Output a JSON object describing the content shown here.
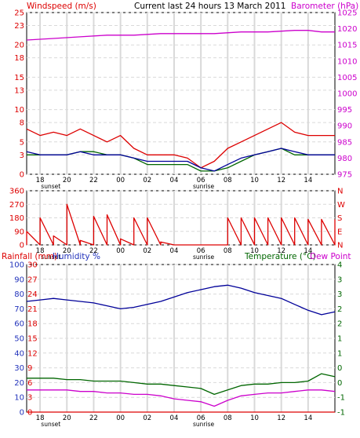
{
  "header": {
    "windspeed_label": "Windspeed (m/s)",
    "title": "Current last 24 hours 13 March 2011",
    "barometer_label": "Barometer (hPa)"
  },
  "colors": {
    "wind": "#dd0000",
    "gust_avg": "#006600",
    "gust": "#000099",
    "baro": "#cc00cc",
    "temp": "#006600",
    "dew": "#cc00cc",
    "hum": "#000099",
    "rain": "#dd0000",
    "grid": "#d9d9d9",
    "axis_red": "#dd0000",
    "axis_blue": "#2233bb",
    "axis_green": "#006600",
    "axis_magenta": "#cc00cc"
  },
  "chart_data": [
    {
      "type": "line",
      "panel": "wind_baro",
      "title": "Current last 24 hours 13 March 2011",
      "ylabel": "Windspeed (m/s)",
      "ylabel_right": "Barometer (hPa)",
      "ylim": [
        0,
        25
      ],
      "y_ticks": [
        0,
        3,
        5,
        8,
        10,
        13,
        15,
        18,
        20,
        23,
        25
      ],
      "ylim_right": [
        975,
        1025
      ],
      "y_ticks_right": [
        975,
        980,
        985,
        990,
        995,
        1000,
        1005,
        1010,
        1015,
        1020,
        1025
      ],
      "xlim": [
        17,
        40
      ],
      "x_ticks": [
        "18",
        "20",
        "22",
        "00",
        "02",
        "04",
        "06",
        "08",
        "10",
        "12",
        "14"
      ],
      "x_tick_hours": [
        18,
        20,
        22,
        24,
        26,
        28,
        30,
        32,
        34,
        36,
        38
      ],
      "x_notes": [
        {
          "hour": 18.8,
          "text": "sunset"
        },
        {
          "hour": 30.2,
          "text": "sunrise"
        }
      ],
      "grid": true,
      "series": [
        {
          "key": "wind",
          "axis": "left",
          "x": [
            17,
            18,
            19,
            20,
            21,
            22,
            23,
            24,
            25,
            26,
            27,
            28,
            29,
            30,
            31,
            32,
            33,
            34,
            35,
            36,
            37,
            38,
            39,
            40
          ],
          "values": [
            7,
            6,
            6.5,
            6,
            7,
            6,
            5,
            6,
            4,
            3,
            3,
            3,
            2.5,
            1,
            2,
            4,
            5,
            6,
            7,
            8,
            6.5,
            6,
            6,
            6
          ]
        },
        {
          "key": "gust_avg",
          "axis": "left",
          "x": [
            17,
            18,
            19,
            20,
            21,
            22,
            23,
            24,
            25,
            26,
            27,
            28,
            29,
            30,
            31,
            32,
            33,
            34,
            35,
            36,
            37,
            38,
            39,
            40
          ],
          "values": [
            3,
            3,
            3,
            3,
            3.5,
            3.5,
            3,
            3,
            2.5,
            1.5,
            1.5,
            1.5,
            1.5,
            0.5,
            0.5,
            1,
            2,
            3,
            3.5,
            4,
            3,
            3,
            3,
            3
          ]
        },
        {
          "key": "gust",
          "axis": "left",
          "x": [
            17,
            18,
            19,
            20,
            21,
            22,
            23,
            24,
            25,
            26,
            27,
            28,
            29,
            30,
            31,
            32,
            33,
            34,
            35,
            36,
            37,
            38,
            39,
            40
          ],
          "values": [
            3.5,
            3,
            3,
            3,
            3.5,
            3,
            3,
            3,
            2.5,
            2,
            2,
            2,
            2,
            1,
            0.5,
            1.5,
            2.5,
            3,
            3.5,
            4,
            3.5,
            3,
            3,
            3
          ]
        },
        {
          "key": "baro",
          "axis": "right",
          "x": [
            17,
            19,
            21,
            23,
            25,
            27,
            29,
            31,
            33,
            35,
            37,
            38,
            39,
            40
          ],
          "values": [
            1016.5,
            1017,
            1017.5,
            1018,
            1018,
            1018.5,
            1018.5,
            1018.5,
            1019,
            1019,
            1019.5,
            1019.5,
            1019,
            1019
          ]
        }
      ]
    },
    {
      "type": "line",
      "panel": "direction",
      "ylim": [
        0,
        360
      ],
      "y_ticks": [
        0,
        90,
        180,
        270,
        360
      ],
      "y_ticks_right": [
        "N",
        "E",
        "S",
        "W",
        "N"
      ],
      "xlim": [
        17,
        40
      ],
      "x_ticks": [
        "18",
        "20",
        "22",
        "00",
        "02",
        "04",
        "06",
        "08",
        "10",
        "12",
        "14"
      ],
      "x_tick_hours": [
        18,
        20,
        22,
        24,
        26,
        28,
        30,
        32,
        34,
        36,
        38
      ],
      "x_notes": [
        {
          "hour": 18.8,
          "text": "sunset"
        },
        {
          "hour": 30.2,
          "text": "sunrise"
        }
      ],
      "grid": true,
      "series": [
        {
          "key": "wind",
          "x": [
            17,
            18,
            19,
            20,
            21,
            22,
            23,
            24,
            25,
            26,
            27,
            28,
            29,
            30,
            31,
            32,
            33,
            34,
            35,
            36,
            37,
            38,
            39,
            40
          ],
          "values": [
            90,
            180,
            60,
            270,
            30,
            190,
            200,
            40,
            180,
            180,
            20,
            0,
            0,
            0,
            0,
            180,
            180,
            180,
            180,
            180,
            180,
            170,
            170,
            170
          ]
        }
      ]
    },
    {
      "type": "line",
      "panel": "temp_hum",
      "ylabel": "Rainfall (mm)",
      "ylabel2": "Humidity %",
      "ylabel_right": "Temperature (°C)",
      "ylabel_right2": "Dew Point",
      "ylim": [
        0,
        100
      ],
      "y_ticks": [
        0,
        10,
        20,
        30,
        40,
        50,
        60,
        70,
        80,
        90,
        100
      ],
      "rain_ticks": [
        0,
        3,
        6,
        9,
        12,
        15,
        18,
        21,
        24,
        27,
        30
      ],
      "ylim_right": [
        -1,
        4
      ],
      "y_ticks_right": [
        "-1",
        "-1",
        "0",
        "0",
        "1",
        "1",
        "2",
        "2",
        "3",
        "3",
        "4"
      ],
      "xlim": [
        17,
        40
      ],
      "x_ticks": [
        "18",
        "20",
        "22",
        "00",
        "02",
        "04",
        "06",
        "08",
        "10",
        "12",
        "14"
      ],
      "x_tick_hours": [
        18,
        20,
        22,
        24,
        26,
        28,
        30,
        32,
        34,
        36,
        38
      ],
      "x_notes": [
        {
          "hour": 18.8,
          "text": "sunset"
        },
        {
          "hour": 30.2,
          "text": "sunrise"
        }
      ],
      "grid": true,
      "series": [
        {
          "key": "hum",
          "axis": "left",
          "x": [
            17,
            18,
            19,
            20,
            21,
            22,
            23,
            24,
            25,
            26,
            27,
            28,
            29,
            30,
            31,
            32,
            33,
            34,
            35,
            36,
            37,
            38,
            39,
            40
          ],
          "values": [
            75,
            76,
            77,
            76,
            75,
            74,
            72,
            70,
            71,
            73,
            75,
            78,
            81,
            83,
            85,
            86,
            84,
            81,
            79,
            77,
            73,
            69,
            66,
            68
          ]
        },
        {
          "key": "temp",
          "axis": "left",
          "x": [
            17,
            18,
            19,
            20,
            21,
            22,
            23,
            24,
            25,
            26,
            27,
            28,
            29,
            30,
            31,
            32,
            33,
            34,
            35,
            36,
            37,
            38,
            39,
            40
          ],
          "values": [
            23,
            23,
            23,
            22,
            22,
            21,
            21,
            21,
            20,
            19,
            19,
            18,
            17,
            16,
            12,
            15,
            18,
            19,
            19,
            20,
            20,
            21,
            26,
            24
          ]
        },
        {
          "key": "dew",
          "axis": "left",
          "x": [
            17,
            18,
            19,
            20,
            21,
            22,
            23,
            24,
            25,
            26,
            27,
            28,
            29,
            30,
            31,
            32,
            33,
            34,
            35,
            36,
            37,
            38,
            39,
            40
          ],
          "values": [
            15,
            15,
            15,
            15,
            14,
            14,
            13,
            13,
            12,
            12,
            11,
            9,
            8,
            7,
            4,
            8,
            11,
            12,
            13,
            13,
            14,
            15,
            15,
            14
          ]
        },
        {
          "key": "rain",
          "axis": "left",
          "x": [
            17,
            40
          ],
          "values": [
            0,
            0
          ]
        }
      ]
    }
  ]
}
